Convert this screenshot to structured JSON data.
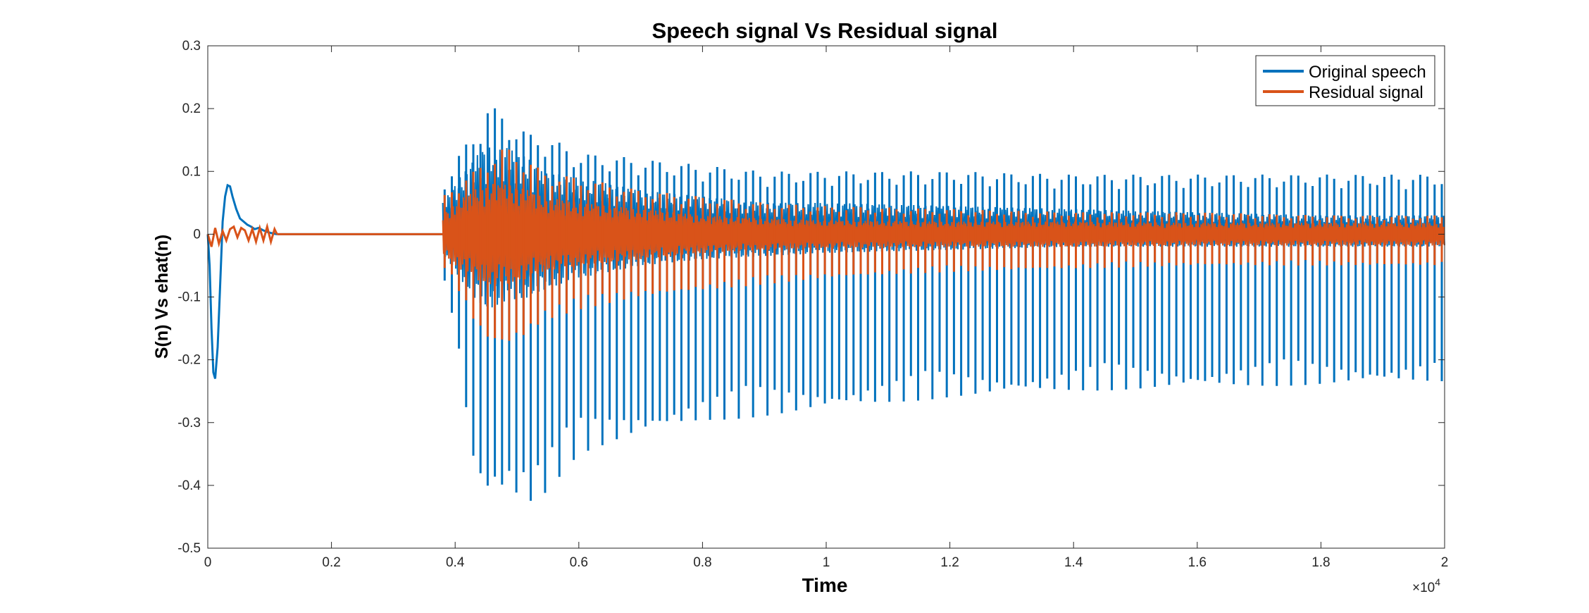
{
  "chart_data": {
    "type": "line",
    "title": "Speech signal Vs Residual signal",
    "xlabel": "Time",
    "ylabel": "S(n) Vs ehat(n)",
    "xlim": [
      0,
      20000
    ],
    "ylim": [
      -0.5,
      0.3
    ],
    "x_ticks": [
      0,
      2000,
      4000,
      6000,
      8000,
      10000,
      12000,
      14000,
      16000,
      18000,
      20000
    ],
    "x_tick_labels": [
      "0",
      "0.2",
      "0.4",
      "0.6",
      "0.8",
      "1",
      "1.2",
      "1.4",
      "1.6",
      "1.8",
      "2"
    ],
    "x_exponent_prefix": "×10",
    "x_exponent_power": "4",
    "y_ticks": [
      -0.5,
      -0.4,
      -0.3,
      -0.2,
      -0.1,
      0,
      0.1,
      0.2,
      0.3
    ],
    "y_tick_labels": [
      "-0.5",
      "-0.4",
      "-0.3",
      "-0.2",
      "-0.1",
      "0",
      "0.1",
      "0.2",
      "0.3"
    ],
    "grid": false,
    "legend_position": "top-right",
    "series": [
      {
        "name": "Original speech",
        "color": "#0072BD",
        "transient": {
          "x": [
            0,
            30,
            60,
            90,
            120,
            160,
            200,
            240,
            280,
            320,
            360,
            400,
            460,
            520,
            580,
            640,
            700,
            760,
            820,
            900,
            980,
            1060,
            1120
          ],
          "y": [
            0,
            -0.05,
            -0.15,
            -0.22,
            -0.23,
            -0.18,
            -0.08,
            0.02,
            0.06,
            0.078,
            0.076,
            0.06,
            0.04,
            0.025,
            0.02,
            0.015,
            0.012,
            0.008,
            0.01,
            0.006,
            0.003,
            0.001,
            0
          ]
        },
        "voiced_segment": {
          "start_x": 3800,
          "end_x": 20000,
          "pulse_period": 116,
          "pulse_x": [
            3800,
            4000,
            4300,
            4500,
            4800,
            5200,
            5400,
            6000,
            7000,
            8000,
            9000,
            10000,
            12000,
            14000,
            16000,
            18000,
            20000
          ],
          "pulse_min": [
            -0.07,
            -0.15,
            -0.38,
            -0.42,
            -0.41,
            -0.43,
            -0.42,
            -0.35,
            -0.32,
            -0.3,
            -0.29,
            -0.28,
            -0.26,
            -0.25,
            -0.245,
            -0.24,
            -0.235
          ],
          "pulse_max": [
            0.08,
            0.12,
            0.16,
            0.21,
            0.19,
            0.16,
            0.16,
            0.13,
            0.12,
            0.11,
            0.1,
            0.1,
            0.1,
            0.095,
            0.095,
            0.095,
            0.095
          ],
          "dense_band_top": [
            0.05,
            0.08,
            0.12,
            0.14,
            0.14,
            0.12,
            0.1,
            0.09,
            0.07,
            0.06,
            0.05,
            0.05,
            0.045,
            0.04,
            0.035,
            0.03,
            0.03
          ],
          "dense_band_bottom": [
            -0.03,
            -0.06,
            -0.1,
            -0.12,
            -0.11,
            -0.1,
            -0.09,
            -0.07,
            -0.05,
            -0.04,
            -0.035,
            -0.03,
            -0.025,
            -0.02,
            -0.02,
            -0.02,
            -0.02
          ]
        }
      },
      {
        "name": "Residual signal",
        "color": "#D95319",
        "transient": {
          "x": [
            0,
            60,
            120,
            180,
            240,
            300,
            360,
            420,
            480,
            540,
            600,
            660,
            720,
            780,
            840,
            900,
            960,
            1020,
            1080,
            1120
          ],
          "y": [
            0,
            -0.02,
            0.01,
            -0.015,
            0.005,
            -0.01,
            0.008,
            0.012,
            -0.005,
            0.01,
            0.006,
            -0.01,
            0.008,
            -0.012,
            0.01,
            -0.01,
            0.012,
            -0.012,
            0.008,
            0
          ]
        },
        "voiced_segment": {
          "start_x": 3800,
          "end_x": 20000,
          "pulse_period": 116,
          "pulse_x": [
            3800,
            4000,
            4300,
            4500,
            4800,
            5200,
            5400,
            6000,
            7000,
            8000,
            9000,
            10000,
            12000,
            14000,
            16000,
            18000,
            20000
          ],
          "pulse_min": [
            -0.05,
            -0.08,
            -0.14,
            -0.17,
            -0.18,
            -0.16,
            -0.14,
            -0.12,
            -0.1,
            -0.09,
            -0.08,
            -0.07,
            -0.06,
            -0.055,
            -0.05,
            -0.05,
            -0.05
          ],
          "pulse_max": [
            0.06,
            0.08,
            0.1,
            0.12,
            0.14,
            0.12,
            0.1,
            0.09,
            0.07,
            0.06,
            0.05,
            0.045,
            0.04,
            0.035,
            0.035,
            0.03,
            0.03
          ],
          "dense_band_top": [
            0.03,
            0.05,
            0.07,
            0.08,
            0.08,
            0.07,
            0.06,
            0.05,
            0.04,
            0.03,
            0.025,
            0.022,
            0.02,
            0.02,
            0.018,
            0.018,
            0.018
          ],
          "dense_band_bottom": [
            -0.03,
            -0.05,
            -0.07,
            -0.08,
            -0.08,
            -0.07,
            -0.06,
            -0.05,
            -0.04,
            -0.03,
            -0.025,
            -0.022,
            -0.02,
            -0.02,
            -0.018,
            -0.018,
            -0.018
          ]
        }
      }
    ]
  }
}
